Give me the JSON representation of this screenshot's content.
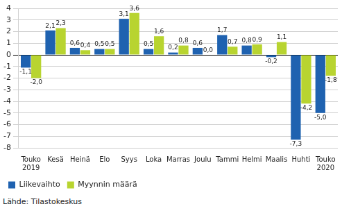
{
  "chart_data": {
    "type": "bar",
    "categories": [
      "Touko 2019",
      "Kesä",
      "Heinä",
      "Elo",
      "Syys",
      "Loka",
      "Marras",
      "Joulu",
      "Tammi",
      "Helmi",
      "Maalis",
      "Huhti",
      "Touko 2020"
    ],
    "series": [
      {
        "name": "Liikevaihto",
        "color": "#1f62b0",
        "values": [
          -1.1,
          2.1,
          0.6,
          0.5,
          3.1,
          0.5,
          0.2,
          0.6,
          1.7,
          0.8,
          -0.2,
          -7.3,
          -5.0
        ],
        "value_labels": [
          "-1,1",
          "2,1",
          "0,6",
          "0,5",
          "3,1",
          "0,5",
          "0,2",
          "0,6",
          "1,7",
          "0,8",
          "-0,2",
          "-7,3",
          "-5,0"
        ]
      },
      {
        "name": "Myynnin määrä",
        "color": "#b8d430",
        "values": [
          -2.0,
          2.3,
          0.4,
          0.5,
          3.6,
          1.6,
          0.8,
          0.0,
          0.7,
          0.9,
          1.1,
          -4.2,
          -1.8
        ],
        "value_labels": [
          "-2,0",
          "2,3",
          "0,4",
          "0,5",
          "3,6",
          "1,6",
          "0,8",
          "0,0",
          "0,7",
          "0,9",
          "1,1",
          "-4,2",
          "-1,8"
        ]
      }
    ],
    "ylim": [
      -8,
      4
    ],
    "yticks": [
      -8,
      -7,
      -6,
      -5,
      -4,
      -3,
      -2,
      -1,
      0,
      1,
      2,
      3,
      4
    ],
    "grid": true,
    "legend": "bottom-left",
    "data_labels": true,
    "annotations": [
      "Lähde: Tilastokeskus"
    ]
  }
}
